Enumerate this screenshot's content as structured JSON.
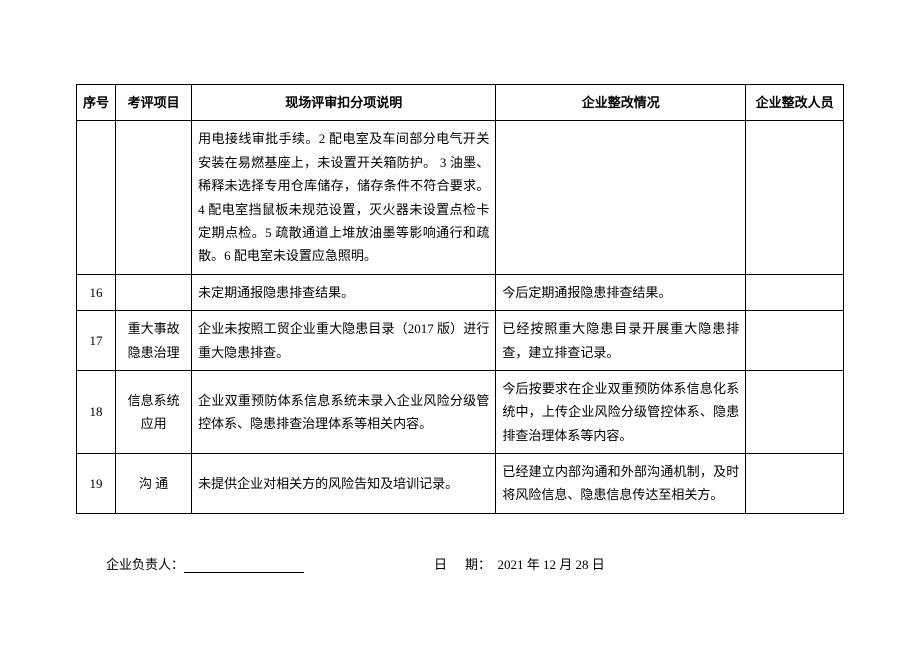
{
  "table": {
    "headers": {
      "seq": "序号",
      "item": "考评项目",
      "desc": "现场评审扣分项说明",
      "rect": "企业整改情况",
      "person": "企业整改人员"
    },
    "rows": [
      {
        "seq": "",
        "item": "",
        "desc": "用电接线审批手续。2 配电室及车间部分电气开关安装在易燃基座上，未设置开关箱防护。 3 油墨、稀释未选择专用仓库储存，储存条件不符合要求。4 配电室挡鼠板未规范设置，灭火器未设置点检卡定期点检。5 疏散通道上堆放油墨等影响通行和疏散。6 配电室未设置应急照明。",
        "rect": "",
        "person": ""
      },
      {
        "seq": "16",
        "item": "",
        "desc": "未定期通报隐患排查结果。",
        "rect": "今后定期通报隐患排查结果。",
        "person": ""
      },
      {
        "seq": "17",
        "item": "重大事故隐患治理",
        "desc": "企业未按照工贸企业重大隐患目录（2017 版）进行重大隐患排查。",
        "rect": "已经按照重大隐患目录开展重大隐患排查，建立排查记录。",
        "person": ""
      },
      {
        "seq": "18",
        "item": "信息系统应用",
        "desc": "企业双重预防体系信息系统未录入企业风险分级管控体系、隐患排查治理体系等相关内容。",
        "rect": "今后按要求在企业双重预防体系信息化系统中，上传企业风险分级管控体系、隐患排查治理体系等内容。",
        "person": ""
      },
      {
        "seq": "19",
        "item": "沟 通",
        "desc": "未提供企业对相关方的风险告知及培训记录。",
        "rect": "已经建立内部沟通和外部沟通机制，及时将风险信息、隐患信息传达至相关方。",
        "person": ""
      }
    ]
  },
  "footer": {
    "signer_label": "企业负责人：",
    "date_label": "日期：",
    "date_value": "2021 年 12 月 28 日"
  }
}
